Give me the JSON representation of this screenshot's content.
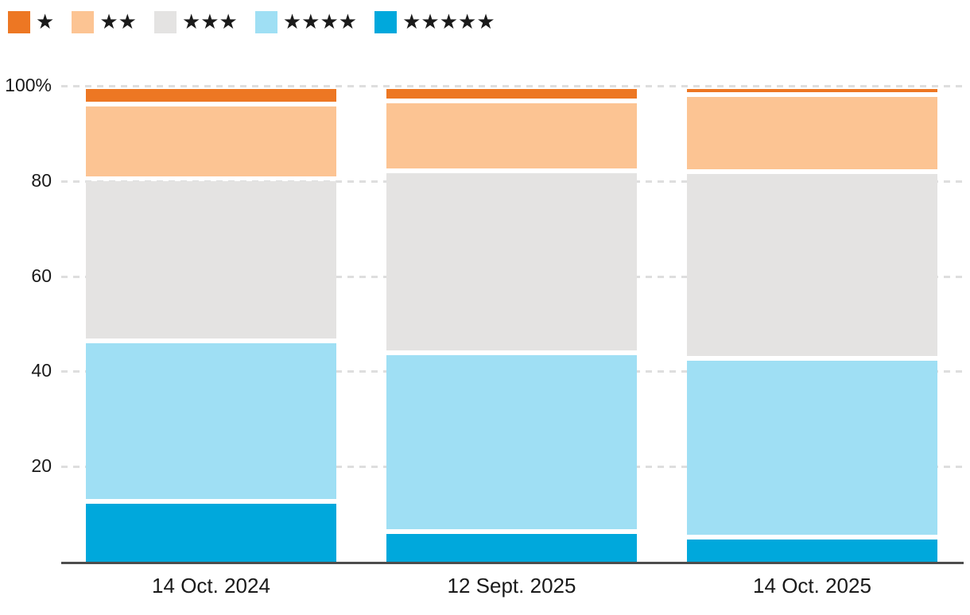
{
  "colors": {
    "background": "#FFFFFF",
    "axis_line": "#4D4D4D",
    "gridline": "#DEDEDE",
    "text": "#1A1A1A",
    "star_glyph": "#1A1A1A"
  },
  "legend": {
    "position": "top-left",
    "items": [
      {
        "name": "1-star",
        "stars": "★",
        "color": "#ED7723"
      },
      {
        "name": "2-star",
        "stars": "★★",
        "color": "#FCC493"
      },
      {
        "name": "3-star",
        "stars": "★★★",
        "color": "#E4E3E2"
      },
      {
        "name": "4-star",
        "stars": "★★★★",
        "color": "#9FDFF4"
      },
      {
        "name": "5-star",
        "stars": "★★★★★",
        "color": "#00A8DC"
      }
    ]
  },
  "chart_data": {
    "type": "bar",
    "variant": "stacked-100-percent",
    "title": "",
    "xlabel": "",
    "ylabel": "",
    "categories": [
      "14 Oct. 2024",
      "12 Sept. 2025",
      "14 Oct. 2025"
    ],
    "series": [
      {
        "name": "1-star",
        "legend": "★",
        "color": "#ED7723",
        "values": [
          3.2,
          2.4,
          1.1
        ]
      },
      {
        "name": "2-star",
        "legend": "★★",
        "color": "#FCC493",
        "values": [
          15.6,
          14.8,
          16.2
        ]
      },
      {
        "name": "3-star",
        "legend": "★★★",
        "color": "#E4E3E2",
        "values": [
          34.1,
          38.2,
          39.3
        ]
      },
      {
        "name": "4-star",
        "legend": "★★★★",
        "color": "#9FDFF4",
        "values": [
          33.7,
          37.6,
          37.6
        ]
      },
      {
        "name": "5-star",
        "legend": "★★★★★",
        "color": "#00A8DC",
        "values": [
          12.7,
          6.3,
          5.1
        ]
      }
    ],
    "stack_order_bottom_to_top": [
      "5-star",
      "4-star",
      "3-star",
      "2-star",
      "1-star"
    ],
    "unit": "%",
    "ylim": [
      0,
      100
    ],
    "yticks": [
      {
        "value": 100,
        "label": "100%"
      },
      {
        "value": 80,
        "label": "80"
      },
      {
        "value": 60,
        "label": "60"
      },
      {
        "value": 40,
        "label": "40"
      },
      {
        "value": 20,
        "label": "20"
      }
    ],
    "grid": "dashed-horizontal",
    "legend_position": "top-left"
  }
}
